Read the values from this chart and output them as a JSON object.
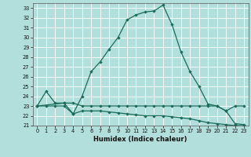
{
  "xlabel": "Humidex (Indice chaleur)",
  "bg_color": "#b2dfdb",
  "plot_bg_color": "#b2dfdb",
  "line_color": "#1a6b5a",
  "grid_color": "#ffffff",
  "xlim": [
    -0.5,
    23.5
  ],
  "ylim": [
    21,
    33.5
  ],
  "yticks": [
    21,
    22,
    23,
    24,
    25,
    26,
    27,
    28,
    29,
    30,
    31,
    32,
    33
  ],
  "xticks": [
    0,
    1,
    2,
    3,
    4,
    5,
    6,
    7,
    8,
    9,
    10,
    11,
    12,
    13,
    14,
    15,
    16,
    17,
    18,
    19,
    20,
    21,
    22,
    23
  ],
  "line1_x": [
    0,
    1,
    2,
    3,
    4,
    5,
    6,
    7,
    8,
    9,
    10,
    11,
    12,
    13,
    14,
    15,
    16,
    17,
    18,
    19,
    20,
    21,
    22,
    23
  ],
  "line1_y": [
    23.0,
    24.5,
    23.3,
    23.3,
    22.2,
    24.0,
    26.5,
    27.5,
    28.8,
    30.0,
    31.8,
    32.3,
    32.6,
    32.7,
    33.3,
    31.3,
    28.5,
    26.5,
    25.0,
    23.2,
    23.0,
    22.5,
    21.2,
    21.1
  ],
  "line2_x": [
    0,
    3,
    4,
    5,
    6,
    7,
    8,
    9,
    10,
    11,
    12,
    13,
    14,
    15,
    16,
    17,
    18,
    19,
    20,
    21,
    22,
    23
  ],
  "line2_y": [
    23.0,
    23.3,
    23.3,
    23.0,
    23.0,
    23.0,
    23.0,
    23.0,
    23.0,
    23.0,
    23.0,
    23.0,
    23.0,
    23.0,
    23.0,
    23.0,
    23.0,
    23.0,
    23.0,
    22.5,
    23.0,
    23.0
  ],
  "line3_x": [
    0,
    1,
    2,
    3,
    4,
    5,
    6,
    7,
    8,
    9,
    10,
    11,
    12,
    13,
    14,
    15,
    16,
    17,
    18,
    19,
    20,
    21,
    22,
    23
  ],
  "line3_y": [
    23.0,
    23.0,
    23.0,
    23.0,
    22.2,
    22.5,
    22.5,
    22.5,
    22.4,
    22.3,
    22.2,
    22.1,
    22.0,
    22.0,
    22.0,
    21.9,
    21.8,
    21.7,
    21.5,
    21.3,
    21.2,
    21.1,
    21.0,
    21.0
  ]
}
